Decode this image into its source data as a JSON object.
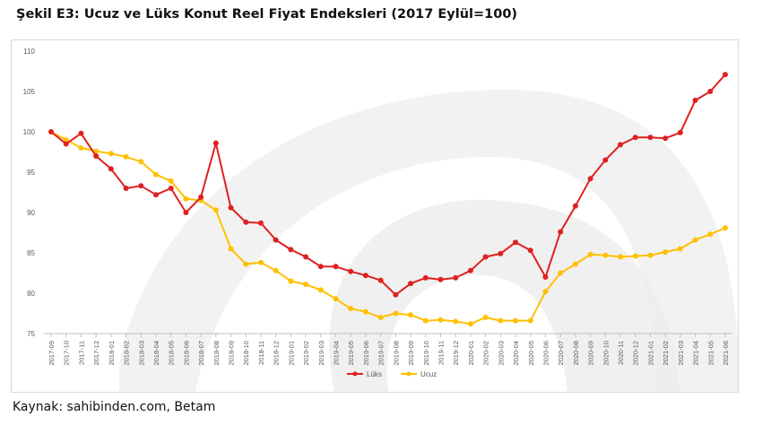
{
  "title": "Şekil E3: Ucuz ve Lüks Konut Reel Fiyat Endeksleri (2017 Eylül=100)",
  "source": "Kaynak: sahibinden.com, Betam",
  "colors": {
    "luks": "#e02020",
    "ucuz": "#ffc000",
    "axis_text": "#595959",
    "watermark": "#eeeeee"
  },
  "chart_data": {
    "type": "line",
    "ylim": [
      75,
      110
    ],
    "yticks": [
      75,
      80,
      85,
      90,
      95,
      100,
      105,
      110
    ],
    "grid": false,
    "legend_position": "bottom-center",
    "categories": [
      "2017-09",
      "2017-10",
      "2017-11",
      "2017-12",
      "2018-01",
      "2018-02",
      "2018-03",
      "2018-04",
      "2018-05",
      "2018-06",
      "2018-07",
      "2018-08",
      "2018-09",
      "2018-10",
      "2018-11",
      "2018-12",
      "2019-01",
      "2019-02",
      "2019-03",
      "2019-04",
      "2019-05",
      "2019-06",
      "2019-07",
      "2019-08",
      "2019-09",
      "2019-10",
      "2019-11",
      "2019-12",
      "2020-01",
      "2020-02",
      "2020-03",
      "2020-04",
      "2020-05",
      "2020-06",
      "2020-07",
      "2020-08",
      "2020-09",
      "2020-10",
      "2020-11",
      "2020-12",
      "2021-01",
      "2021-02",
      "2021-03",
      "2021-04",
      "2021-05",
      "2021-06"
    ],
    "series": [
      {
        "name": "Lüks",
        "color": "#e02020",
        "values": [
          100,
          98.5,
          99.8,
          97,
          95.4,
          93,
          93.3,
          92.2,
          93,
          90,
          91.9,
          98.6,
          90.6,
          88.8,
          88.7,
          86.6,
          85.4,
          84.5,
          83.3,
          83.3,
          82.7,
          82.2,
          81.6,
          79.8,
          81.2,
          81.9,
          81.7,
          81.9,
          82.8,
          84.5,
          84.9,
          86.3,
          85.3,
          82,
          87.6,
          90.8,
          94.2,
          96.5,
          98.4,
          99.3,
          99.3,
          99.2,
          99.9,
          103.9,
          105,
          107.1
        ]
      },
      {
        "name": "Ucuz",
        "color": "#ffc000",
        "values": [
          100,
          99,
          98,
          97.6,
          97.3,
          96.9,
          96.3,
          94.7,
          93.9,
          91.7,
          91.5,
          90.3,
          85.5,
          83.6,
          83.8,
          82.8,
          81.5,
          81.1,
          80.4,
          79.3,
          78.1,
          77.7,
          77,
          77.5,
          77.3,
          76.6,
          76.7,
          76.5,
          76.2,
          77,
          76.6,
          76.6,
          76.6,
          80.2,
          82.5,
          83.6,
          84.8,
          84.7,
          84.5,
          84.6,
          84.7,
          85.1,
          85.5,
          86.6,
          87.3,
          88.1
        ]
      }
    ]
  }
}
